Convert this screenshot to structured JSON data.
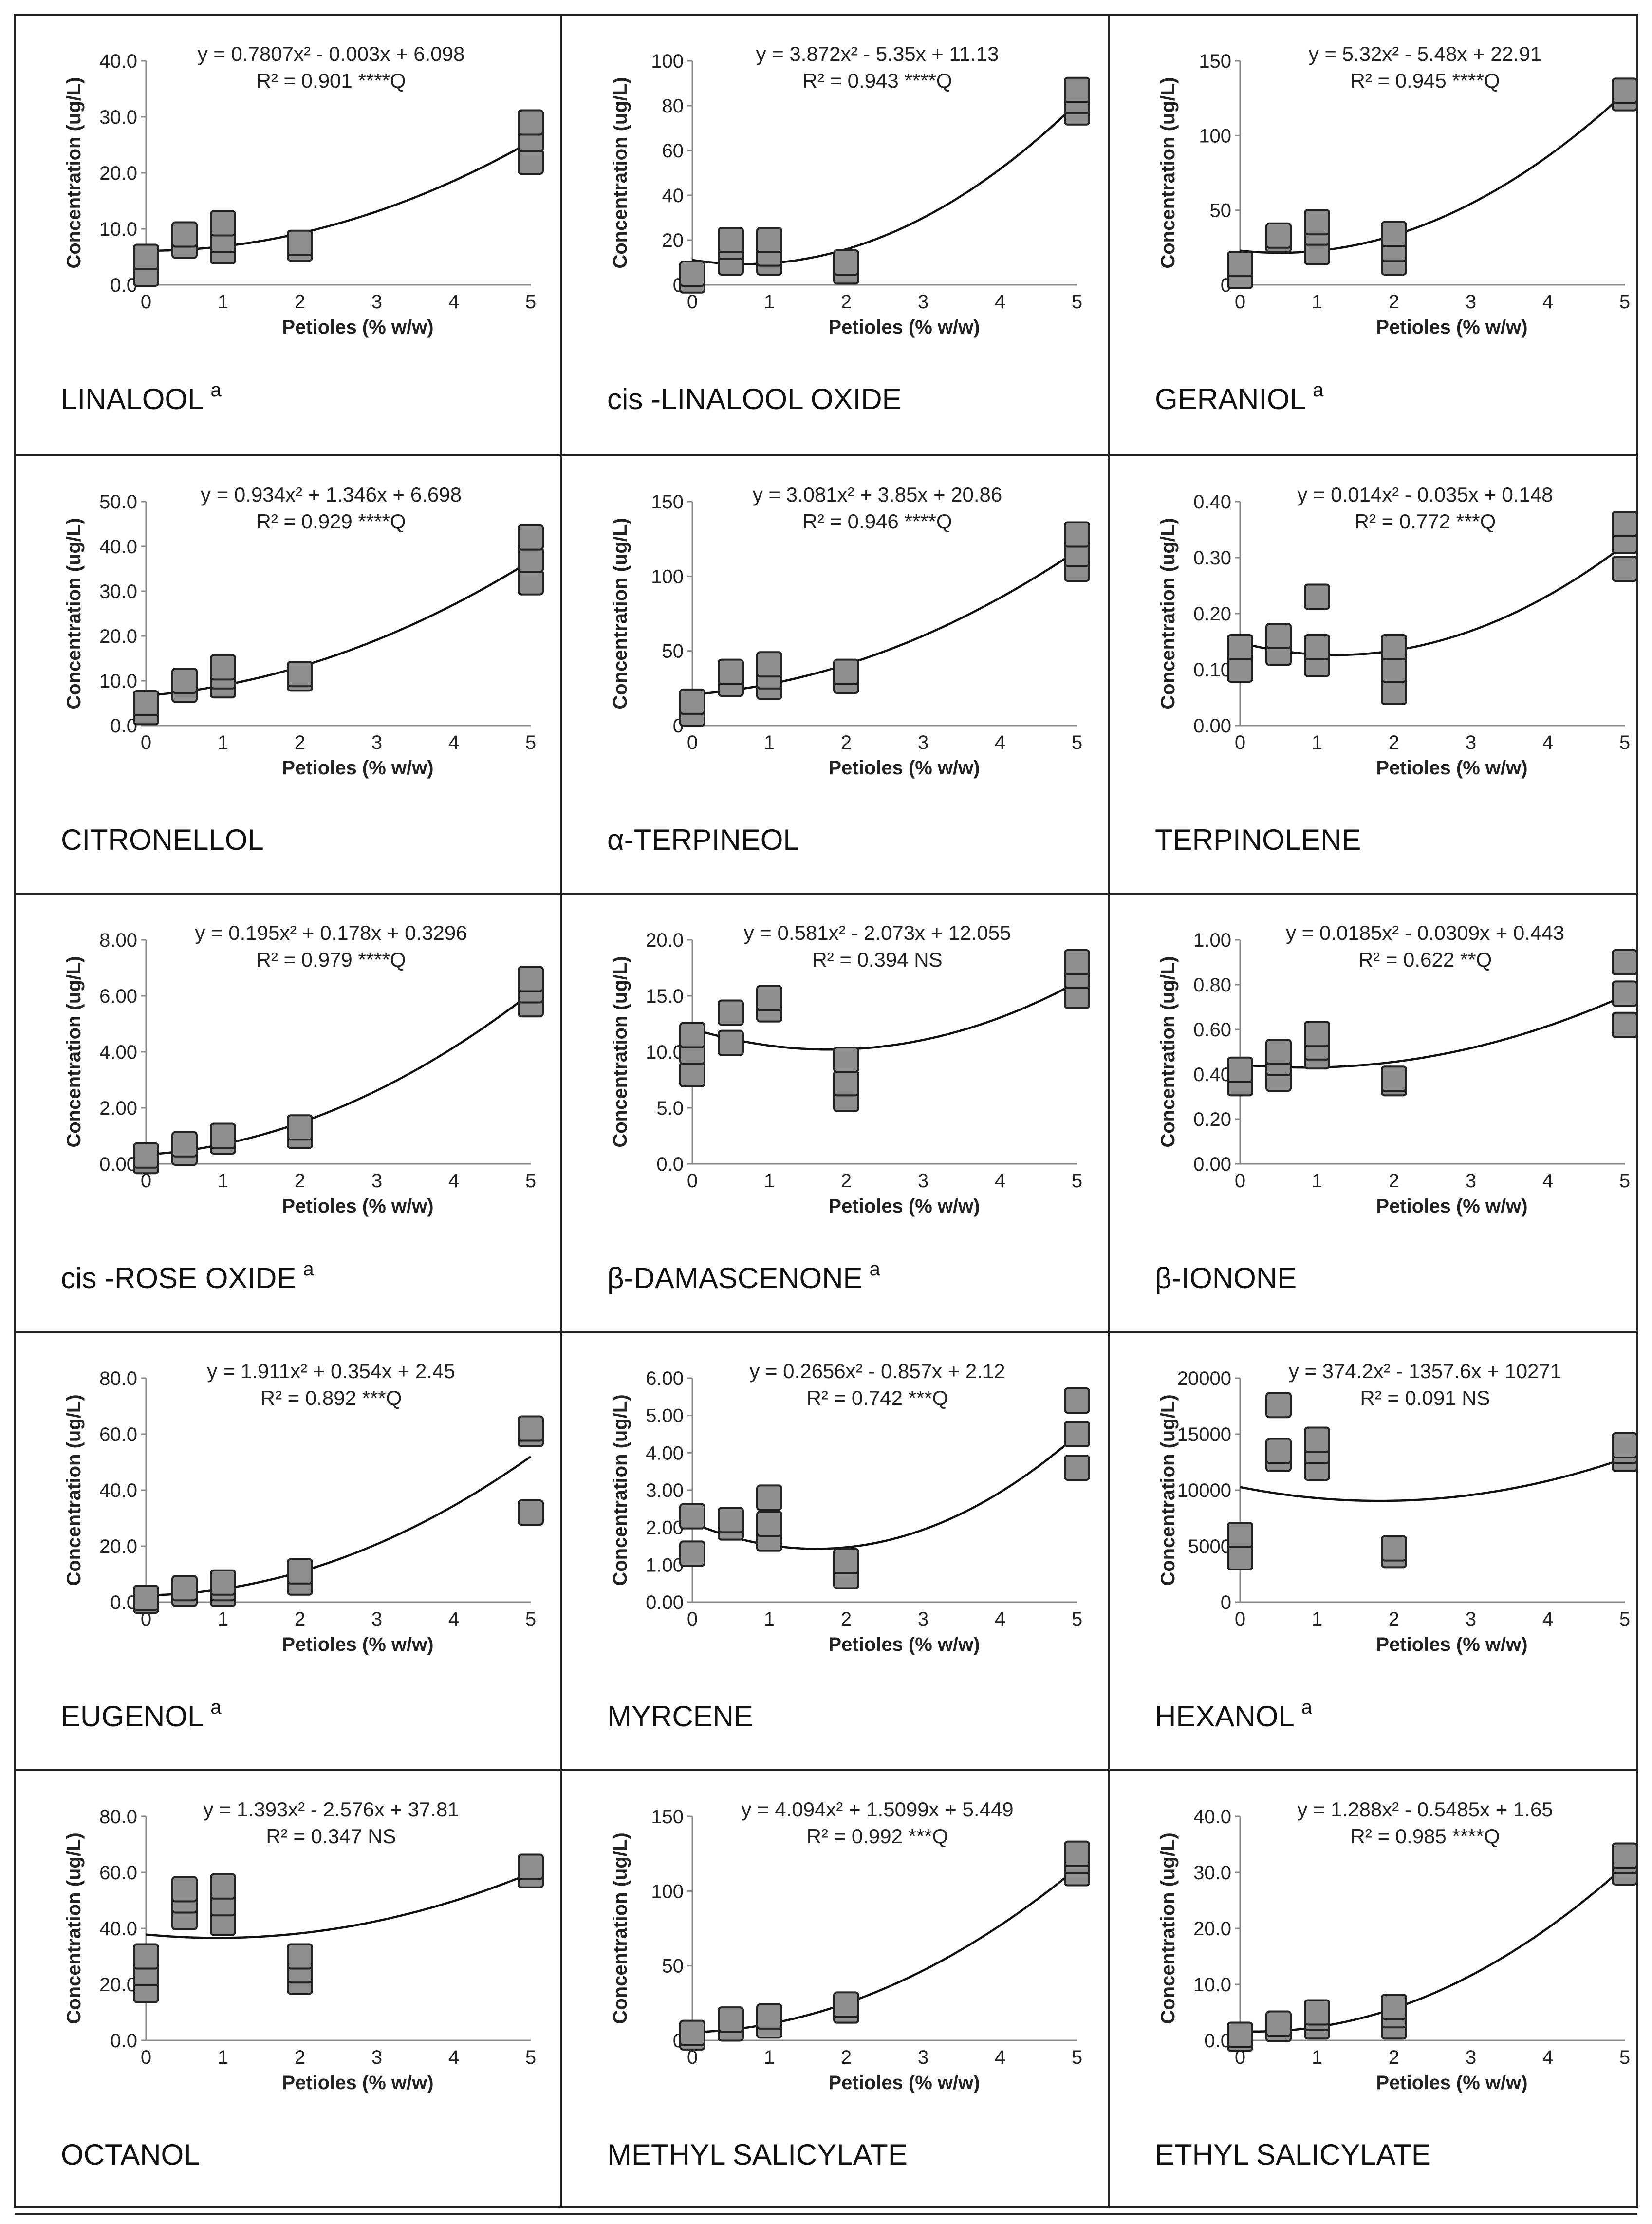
{
  "figure": {
    "x_axis_label": "Petioles (% w/w)",
    "y_axis_label": "Concentration (ug/L)"
  },
  "chart_data": [
    {
      "type": "scatter",
      "title": "LINALOOL",
      "title_sup": "a",
      "equation": "y = 0.7807x² - 0.003x + 6.098",
      "r2": "R² = 0.901 ****Q",
      "fit": [
        0.7807,
        -0.003,
        6.098
      ],
      "xticks": [
        0,
        1,
        2,
        3,
        4,
        5
      ],
      "yticks": [
        "0.0",
        "10.0",
        "20.0",
        "30.0",
        "40.0"
      ],
      "ylim": [
        0,
        40
      ],
      "points": [
        [
          0,
          2
        ],
        [
          0,
          5
        ],
        [
          0.5,
          7
        ],
        [
          0.5,
          9
        ],
        [
          1,
          6
        ],
        [
          1,
          8
        ],
        [
          1,
          11
        ],
        [
          2,
          6.5
        ],
        [
          2,
          7.5
        ],
        [
          5,
          22
        ],
        [
          5,
          26
        ],
        [
          5,
          29
        ]
      ]
    },
    {
      "type": "scatter",
      "title": "cis -LINALOOL OXIDE",
      "title_sup": "",
      "equation": "y = 3.872x² - 5.35x + 11.13",
      "r2": "R² = 0.943 ****Q",
      "fit": [
        3.872,
        -5.35,
        11.13
      ],
      "xticks": [
        0,
        1,
        2,
        3,
        4,
        5
      ],
      "yticks": [
        "0",
        "20",
        "40",
        "60",
        "80",
        "100"
      ],
      "ylim": [
        0,
        100
      ],
      "points": [
        [
          0,
          2
        ],
        [
          0,
          5
        ],
        [
          0.5,
          10
        ],
        [
          0.5,
          17
        ],
        [
          0.5,
          20
        ],
        [
          1,
          10
        ],
        [
          1,
          14
        ],
        [
          1,
          20
        ],
        [
          2,
          6
        ],
        [
          2,
          10
        ],
        [
          5,
          77
        ],
        [
          5,
          82
        ],
        [
          5,
          87
        ]
      ]
    },
    {
      "type": "scatter",
      "title": "GERANIOL",
      "title_sup": "a",
      "equation": "y = 5.32x² - 5.48x + 22.91",
      "r2": "R² = 0.945 ****Q",
      "fit": [
        5.32,
        -5.48,
        22.91
      ],
      "xticks": [
        0,
        1,
        2,
        3,
        4,
        5
      ],
      "yticks": [
        "0",
        "50",
        "100",
        "150"
      ],
      "ylim": [
        0,
        150
      ],
      "points": [
        [
          0,
          6
        ],
        [
          0,
          14
        ],
        [
          0.5,
          30
        ],
        [
          0.5,
          33
        ],
        [
          1,
          22
        ],
        [
          1,
          35
        ],
        [
          1,
          42
        ],
        [
          2,
          15
        ],
        [
          2,
          24
        ],
        [
          2,
          34
        ],
        [
          5,
          125
        ],
        [
          5,
          130
        ]
      ]
    },
    {
      "type": "scatter",
      "title": "CITRONELLOL",
      "title_sup": "",
      "equation": "y = 0.934x² + 1.346x + 6.698",
      "r2": "R² = 0.929 ****Q",
      "fit": [
        0.934,
        1.346,
        6.698
      ],
      "xticks": [
        0,
        1,
        2,
        3,
        4,
        5
      ],
      "yticks": [
        "0.0",
        "10.0",
        "20.0",
        "30.0",
        "40.0",
        "50.0"
      ],
      "ylim": [
        0,
        50
      ],
      "points": [
        [
          0,
          3
        ],
        [
          0,
          5
        ],
        [
          0.5,
          8
        ],
        [
          0.5,
          10
        ],
        [
          1,
          9
        ],
        [
          1,
          11
        ],
        [
          1,
          13
        ],
        [
          2,
          10.5
        ],
        [
          2,
          11.5
        ],
        [
          5,
          32
        ],
        [
          5,
          37
        ],
        [
          5,
          42
        ]
      ]
    },
    {
      "type": "scatter",
      "title": "α-TERPINEOL",
      "title_sup": "",
      "equation": "y = 3.081x² + 3.85x + 20.86",
      "r2": "R² = 0.946 ****Q",
      "fit": [
        3.081,
        3.85,
        20.86
      ],
      "xticks": [
        0,
        1,
        2,
        3,
        4,
        5
      ],
      "yticks": [
        "0",
        "50",
        "100",
        "150"
      ],
      "ylim": [
        0,
        150
      ],
      "points": [
        [
          0,
          8
        ],
        [
          0,
          16
        ],
        [
          0.5,
          28
        ],
        [
          0.5,
          36
        ],
        [
          1,
          26
        ],
        [
          1,
          33
        ],
        [
          1,
          41
        ],
        [
          2,
          30
        ],
        [
          2,
          36
        ],
        [
          5,
          105
        ],
        [
          5,
          115
        ],
        [
          5,
          128
        ]
      ]
    },
    {
      "type": "scatter",
      "title": "TERPINOLENE",
      "title_sup": "",
      "equation": "y = 0.014x² - 0.035x + 0.148",
      "r2": "R² = 0.772 ***Q",
      "fit": [
        0.014,
        -0.035,
        0.148
      ],
      "xticks": [
        0,
        1,
        2,
        3,
        4,
        5
      ],
      "yticks": [
        "0.00",
        "0.10",
        "0.20",
        "0.30",
        "0.40"
      ],
      "ylim": [
        0,
        0.4
      ],
      "points": [
        [
          0,
          0.1
        ],
        [
          0,
          0.14
        ],
        [
          0.5,
          0.13
        ],
        [
          0.5,
          0.16
        ],
        [
          1,
          0.11
        ],
        [
          1,
          0.14
        ],
        [
          1,
          0.23
        ],
        [
          2,
          0.06
        ],
        [
          2,
          0.1
        ],
        [
          2,
          0.14
        ],
        [
          5,
          0.28
        ],
        [
          5,
          0.33
        ],
        [
          5,
          0.36
        ]
      ]
    },
    {
      "type": "scatter",
      "title": "cis -ROSE OXIDE",
      "title_sup": "a",
      "equation": "y = 0.195x² + 0.178x + 0.3296",
      "r2": "R² = 0.979 ****Q",
      "fit": [
        0.195,
        0.178,
        0.3296
      ],
      "xticks": [
        0,
        1,
        2,
        3,
        4,
        5
      ],
      "yticks": [
        "0.00",
        "2.00",
        "4.00",
        "6.00",
        "8.00"
      ],
      "ylim": [
        0,
        8
      ],
      "points": [
        [
          0,
          0.1
        ],
        [
          0,
          0.3
        ],
        [
          0.5,
          0.4
        ],
        [
          0.5,
          0.7
        ],
        [
          1,
          0.8
        ],
        [
          1,
          1.0
        ],
        [
          2,
          1.0
        ],
        [
          2,
          1.3
        ],
        [
          5,
          5.7
        ],
        [
          5,
          6.2
        ],
        [
          5,
          6.6
        ]
      ]
    },
    {
      "type": "scatter",
      "title": "β-DAMASCENONE",
      "title_sup": "a",
      "equation": "y = 0.581x² - 2.073x + 12.055",
      "r2": "R² = 0.394 NS",
      "fit": [
        0.581,
        -2.073,
        12.055
      ],
      "xticks": [
        0,
        1,
        2,
        3,
        4,
        5
      ],
      "yticks": [
        "0.0",
        "5.0",
        "10.0",
        "15.0",
        "20.0"
      ],
      "ylim": [
        0,
        20
      ],
      "points": [
        [
          0,
          8
        ],
        [
          0,
          10
        ],
        [
          0,
          11.5
        ],
        [
          0.5,
          10.8
        ],
        [
          0.5,
          13.5
        ],
        [
          1,
          13.8
        ],
        [
          1,
          14.8
        ],
        [
          2,
          5.8
        ],
        [
          2,
          7.2
        ],
        [
          2,
          9.3
        ],
        [
          5,
          15
        ],
        [
          5,
          16.8
        ],
        [
          5,
          18
        ]
      ]
    },
    {
      "type": "scatter",
      "title": "β-IONONE",
      "title_sup": "",
      "equation": "y = 0.0185x² - 0.0309x + 0.443",
      "r2": "R² = 0.622 **Q",
      "fit": [
        0.0185,
        -0.0309,
        0.443
      ],
      "xticks": [
        0,
        1,
        2,
        3,
        4,
        5
      ],
      "yticks": [
        "0.00",
        "0.20",
        "0.40",
        "0.60",
        "0.80",
        "1.00"
      ],
      "ylim": [
        0,
        1
      ],
      "points": [
        [
          0,
          0.36
        ],
        [
          0,
          0.42
        ],
        [
          0.5,
          0.38
        ],
        [
          0.5,
          0.45
        ],
        [
          0.5,
          0.5
        ],
        [
          1,
          0.48
        ],
        [
          1,
          0.52
        ],
        [
          1,
          0.58
        ],
        [
          2,
          0.36
        ],
        [
          2,
          0.38
        ],
        [
          5,
          0.62
        ],
        [
          5,
          0.76
        ],
        [
          5,
          0.9
        ]
      ]
    },
    {
      "type": "scatter",
      "title": "EUGENOL",
      "title_sup": "a",
      "equation": "y = 1.911x² + 0.354x + 2.45",
      "r2": "R² = 0.892 ***Q",
      "fit": [
        1.911,
        0.354,
        2.45
      ],
      "xticks": [
        0,
        1,
        2,
        3,
        4,
        5
      ],
      "yticks": [
        "0.0",
        "20.0",
        "40.0",
        "60.0",
        "80.0"
      ],
      "ylim": [
        0,
        80
      ],
      "points": [
        [
          0,
          0.5
        ],
        [
          0,
          1.5
        ],
        [
          0.5,
          3
        ],
        [
          0.5,
          5
        ],
        [
          1,
          3
        ],
        [
          1,
          5
        ],
        [
          1,
          7
        ],
        [
          2,
          7
        ],
        [
          2,
          11
        ],
        [
          5,
          32
        ],
        [
          5,
          60
        ],
        [
          5,
          62
        ]
      ]
    },
    {
      "type": "scatter",
      "title": "MYRCENE",
      "title_sup": "",
      "equation": "y = 0.2656x² - 0.857x + 2.12",
      "r2": "R² = 0.742 ***Q",
      "fit": [
        0.2656,
        -0.857,
        2.12
      ],
      "xticks": [
        0,
        1,
        2,
        3,
        4,
        5
      ],
      "yticks": [
        "0.00",
        "1.00",
        "2.00",
        "3.00",
        "4.00",
        "5.00",
        "6.00"
      ],
      "ylim": [
        0,
        6
      ],
      "points": [
        [
          0,
          1.3
        ],
        [
          0,
          2.3
        ],
        [
          0.5,
          2.0
        ],
        [
          0.5,
          2.2
        ],
        [
          1,
          1.7
        ],
        [
          1,
          2.1
        ],
        [
          1,
          2.8
        ],
        [
          2,
          0.7
        ],
        [
          2,
          1.1
        ],
        [
          5,
          3.6
        ],
        [
          5,
          4.5
        ],
        [
          5,
          5.4
        ]
      ]
    },
    {
      "type": "scatter",
      "title": "HEXANOL",
      "title_sup": "a",
      "equation": "y = 374.2x² - 1357.6x + 10271",
      "r2": "R² = 0.091 NS",
      "fit": [
        374.2,
        -1357.6,
        10271
      ],
      "xticks": [
        0,
        1,
        2,
        3,
        4,
        5
      ],
      "yticks": [
        "0",
        "5000",
        "10000",
        "15000",
        "20000"
      ],
      "ylim": [
        0,
        20000
      ],
      "points": [
        [
          0,
          4000
        ],
        [
          0,
          6000
        ],
        [
          0.5,
          12800
        ],
        [
          0.5,
          13500
        ],
        [
          0.5,
          17600
        ],
        [
          1,
          12000
        ],
        [
          1,
          13500
        ],
        [
          1,
          14500
        ],
        [
          2,
          4200
        ],
        [
          2,
          4800
        ],
        [
          5,
          12800
        ],
        [
          5,
          13500
        ],
        [
          5,
          14000
        ]
      ]
    },
    {
      "type": "scatter",
      "title": "OCTANOL",
      "title_sup": "",
      "equation": "y = 1.393x² - 2.576x + 37.81",
      "r2": "R² = 0.347 NS",
      "fit": [
        1.393,
        -2.576,
        37.81
      ],
      "xticks": [
        0,
        1,
        2,
        3,
        4,
        5
      ],
      "yticks": [
        "0.0",
        "20.0",
        "40.0",
        "60.0",
        "80.0"
      ],
      "ylim": [
        0,
        80
      ],
      "points": [
        [
          0,
          18
        ],
        [
          0,
          24
        ],
        [
          0,
          30
        ],
        [
          0.5,
          44
        ],
        [
          0.5,
          50
        ],
        [
          0.5,
          54
        ],
        [
          1,
          42
        ],
        [
          1,
          49
        ],
        [
          1,
          55
        ],
        [
          2,
          21
        ],
        [
          2,
          25
        ],
        [
          2,
          30
        ],
        [
          5,
          59
        ],
        [
          5,
          62
        ]
      ]
    },
    {
      "type": "scatter",
      "title": "METHYL SALICYLATE",
      "title_sup": "",
      "equation": "y = 4.094x² + 1.5099x + 5.449",
      "r2": "R² = 0.992 ***Q",
      "fit": [
        4.094,
        1.5099,
        5.449
      ],
      "xticks": [
        0,
        1,
        2,
        3,
        4,
        5
      ],
      "yticks": [
        "0",
        "50",
        "100",
        "150"
      ],
      "ylim": [
        0,
        150
      ],
      "points": [
        [
          0,
          2
        ],
        [
          0,
          5
        ],
        [
          0.5,
          8
        ],
        [
          0.5,
          14
        ],
        [
          1,
          10
        ],
        [
          1,
          16
        ],
        [
          2,
          20
        ],
        [
          2,
          24
        ],
        [
          5,
          112
        ],
        [
          5,
          120
        ],
        [
          5,
          125
        ]
      ]
    },
    {
      "type": "scatter",
      "title": "ETHYL SALICYLATE",
      "title_sup": "",
      "equation": "y = 1.288x² - 0.5485x + 1.65",
      "r2": "R² = 0.985 ****Q",
      "fit": [
        1.288,
        -0.5485,
        1.65
      ],
      "xticks": [
        0,
        1,
        2,
        3,
        4,
        5
      ],
      "yticks": [
        "0.0",
        "10.0",
        "20.0",
        "30.0",
        "40.0"
      ],
      "ylim": [
        0,
        40
      ],
      "points": [
        [
          0,
          0.3
        ],
        [
          0,
          1
        ],
        [
          0.5,
          2
        ],
        [
          0.5,
          3
        ],
        [
          1,
          2.5
        ],
        [
          1,
          4
        ],
        [
          1,
          5
        ],
        [
          2,
          2.5
        ],
        [
          2,
          4.5
        ],
        [
          2,
          6
        ],
        [
          5,
          30
        ],
        [
          5,
          32
        ],
        [
          5,
          33
        ]
      ]
    }
  ]
}
